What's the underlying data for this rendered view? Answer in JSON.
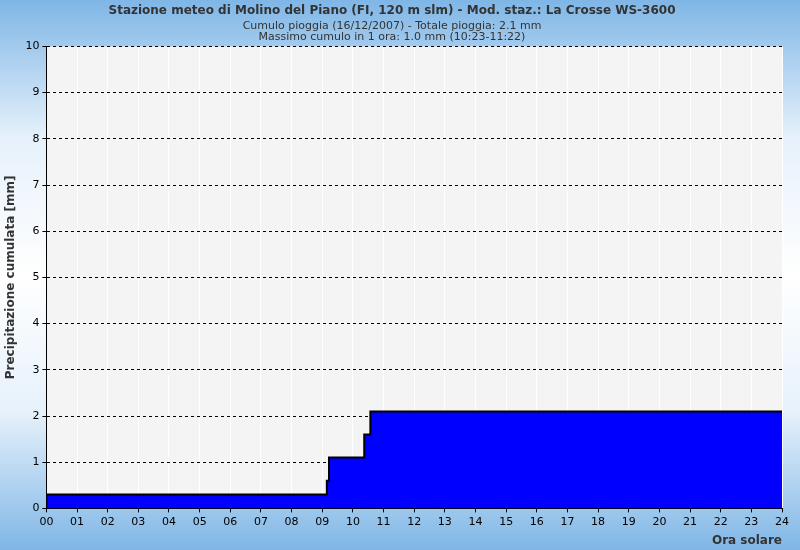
{
  "chart_data": {
    "type": "line",
    "title": "Stazione meteo di Molino del Piano (FI, 120 m slm) - Mod. staz.: La Crosse WS-3600",
    "subtitle": [
      "Cumulo pioggia (16/12/2007) - Totale pioggia: 2.1 mm",
      "Massimo cumulo in 1 ora: 1.0 mm (10:23-11:22)"
    ],
    "x_label": "Ora solare",
    "y_label": "Precipitazione cumulata [mm]",
    "x": [
      0,
      9.15,
      9.22,
      10.37,
      10.57,
      13.93,
      24
    ],
    "values": [
      0,
      0.3,
      0.6,
      1.1,
      1.6,
      2.1,
      2.1
    ],
    "color": "#0000ff",
    "line_style": "steps",
    "xlim": [
      0,
      24
    ],
    "xticks": [
      {
        "value": 0,
        "label": "00"
      },
      {
        "value": 1,
        "label": "01"
      },
      {
        "value": 2,
        "label": "02"
      },
      {
        "value": 3,
        "label": "03"
      },
      {
        "value": 4,
        "label": "04"
      },
      {
        "value": 5,
        "label": "05"
      },
      {
        "value": 6,
        "label": "06"
      },
      {
        "value": 7,
        "label": "07"
      },
      {
        "value": 8,
        "label": "08"
      },
      {
        "value": 9,
        "label": "09"
      },
      10,
      11,
      12,
      13,
      14,
      15,
      16,
      17,
      18,
      19,
      20,
      21,
      22,
      23,
      24
    ],
    "ylim": [
      0,
      10
    ],
    "yticks": [
      0,
      1,
      2,
      3,
      4,
      5,
      6,
      7,
      8,
      9,
      10
    ],
    "grid": true
  }
}
